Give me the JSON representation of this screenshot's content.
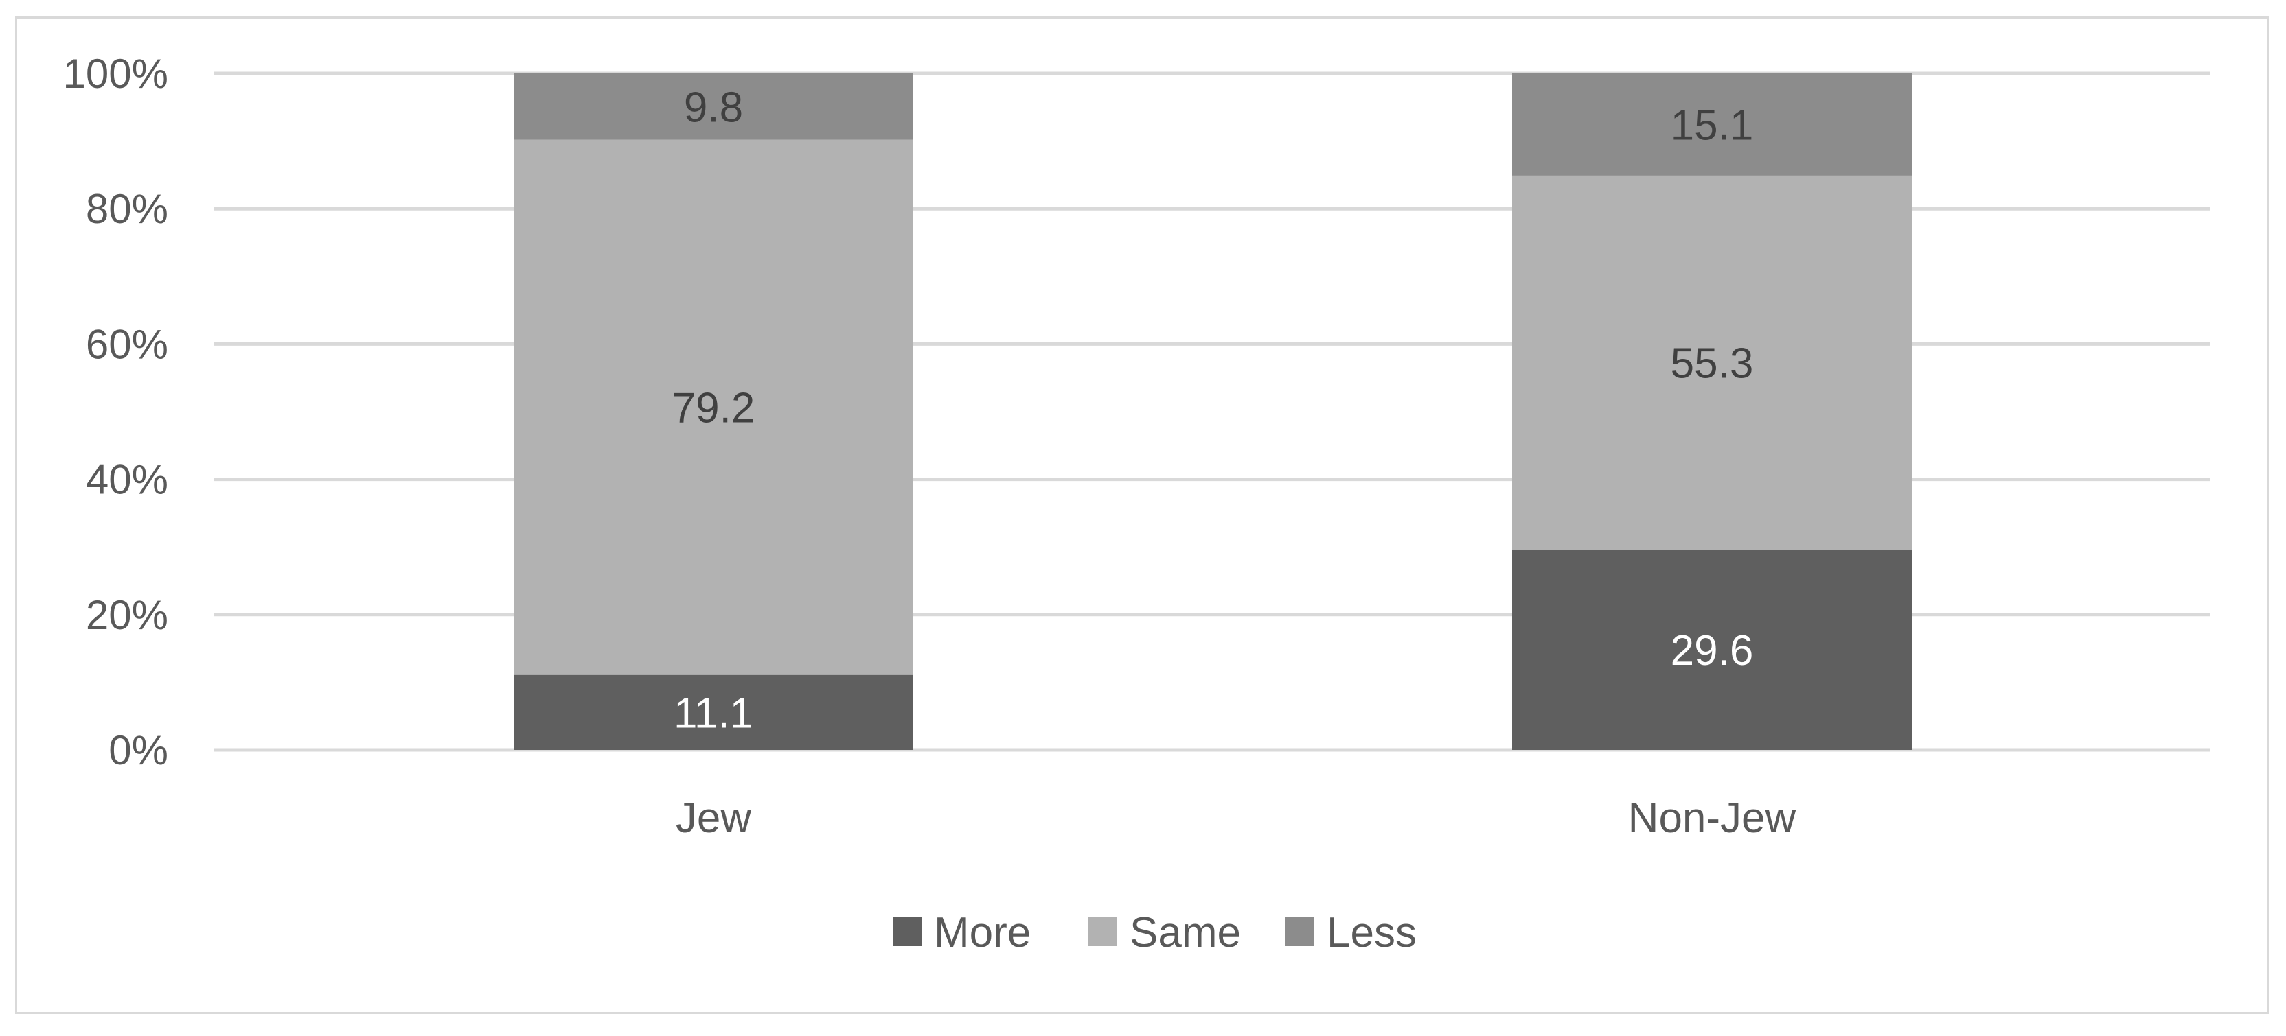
{
  "chart_data": {
    "type": "bar",
    "stacked": true,
    "percent_stacked": true,
    "categories": [
      "Jew",
      "Non-Jew"
    ],
    "series": [
      {
        "name": "More",
        "values": [
          11.1,
          29.6
        ],
        "color": "#5f5f5f",
        "label_color": "#ffffff"
      },
      {
        "name": "Same",
        "values": [
          79.2,
          55.3
        ],
        "color": "#b2b2b2",
        "label_color": "#404040"
      },
      {
        "name": "Less",
        "values": [
          9.8,
          15.1
        ],
        "color": "#8c8c8c",
        "label_color": "#404040"
      }
    ],
    "y_ticks": [
      "0%",
      "20%",
      "40%",
      "60%",
      "80%",
      "100%"
    ],
    "ylim": [
      0,
      100
    ],
    "grid": true,
    "legend_position": "bottom",
    "title": "",
    "xlabel": "",
    "ylabel": ""
  }
}
